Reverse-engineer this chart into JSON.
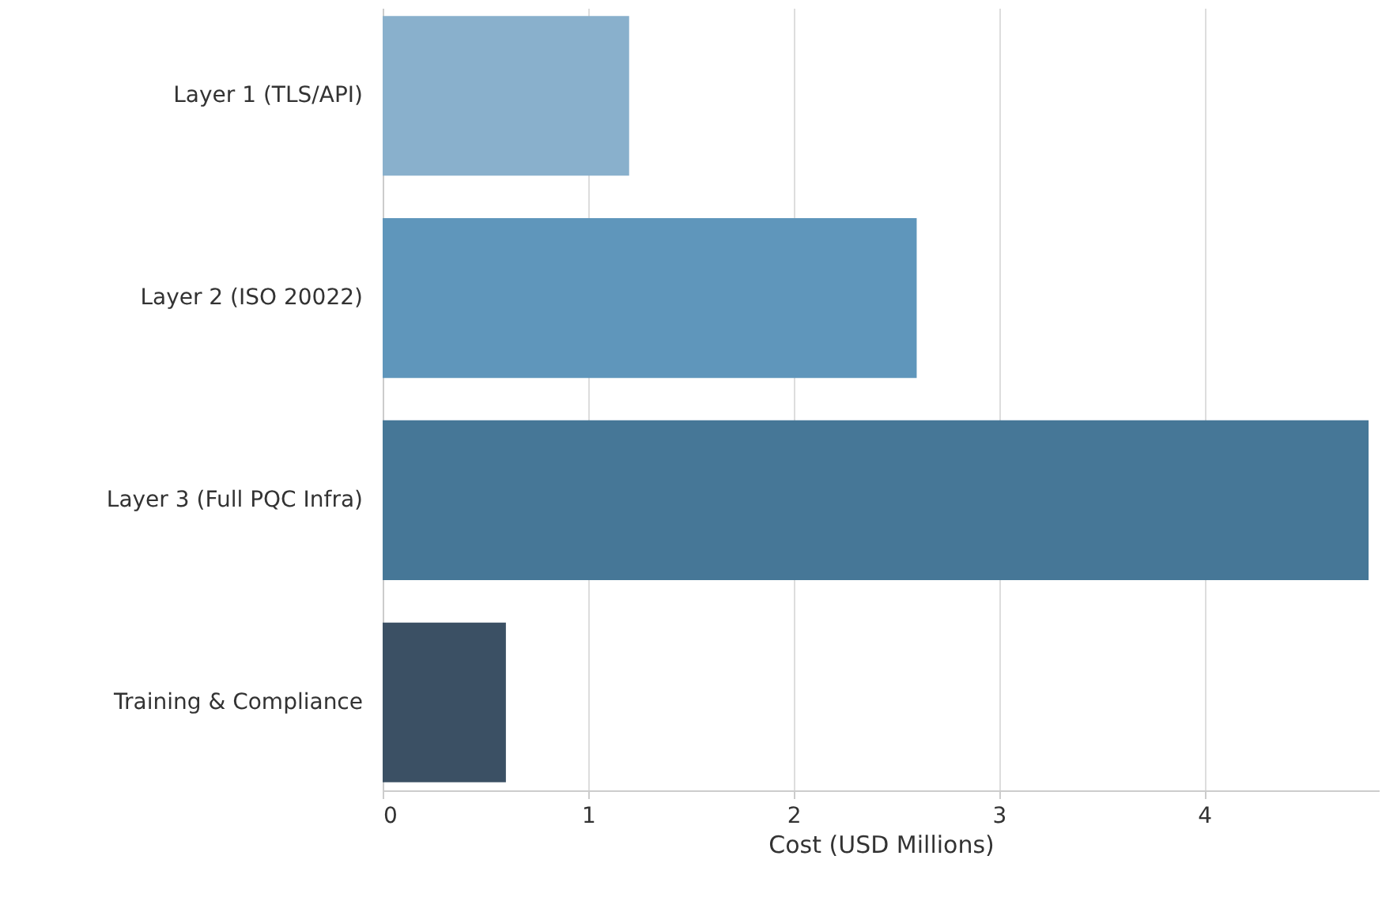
{
  "chart_data": {
    "type": "bar",
    "orientation": "horizontal",
    "xlabel": "Cost (USD Millions)",
    "categories": [
      "Layer 1 (TLS/API)",
      "Layer 2 (ISO 20022)",
      "Layer 3 (Full PQC Infra)",
      "Training & Compliance"
    ],
    "values": [
      1.2,
      2.6,
      4.8,
      0.6
    ],
    "colors": [
      "#89b0cc",
      "#5f96bb",
      "#467797",
      "#3b5064"
    ],
    "xlim": [
      0,
      4.85
    ],
    "xticks": [
      0,
      1,
      2,
      3,
      4
    ],
    "grid": "x"
  }
}
